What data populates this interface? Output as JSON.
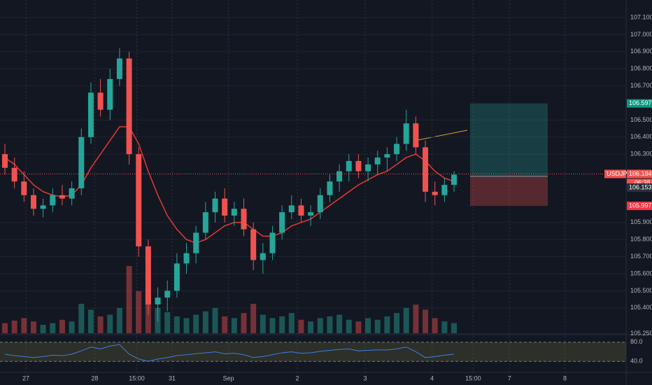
{
  "chart_data": {
    "type": "candlestick",
    "symbol": "USDJPY",
    "open": [
      106.3,
      106.22,
      106.14,
      106.06,
      105.98,
      106.0,
      106.06,
      106.04,
      106.1,
      106.4,
      106.66,
      106.56,
      106.74,
      106.86,
      106.3,
      105.76,
      105.42,
      105.46,
      105.5,
      105.66,
      105.72,
      105.84,
      105.96,
      106.04,
      105.94,
      105.98,
      105.86,
      105.68,
      105.72,
      105.84,
      105.96,
      106.0,
      105.94,
      105.96,
      106.06,
      106.14,
      106.2,
      106.26,
      106.2,
      106.24,
      106.28,
      106.3,
      106.36,
      106.48,
      106.34,
      106.08,
      106.06,
      106.12
    ],
    "high": [
      106.36,
      106.28,
      106.2,
      106.1,
      106.04,
      106.1,
      106.12,
      106.14,
      106.45,
      106.72,
      106.74,
      106.8,
      106.92,
      106.9,
      106.34,
      105.8,
      105.52,
      105.56,
      105.72,
      105.78,
      105.88,
      106.02,
      106.08,
      106.1,
      106.02,
      106.04,
      105.9,
      105.78,
      105.88,
      106.0,
      106.06,
      106.04,
      106.0,
      106.1,
      106.18,
      106.24,
      106.3,
      106.3,
      106.28,
      106.32,
      106.34,
      106.4,
      106.56,
      106.52,
      106.38,
      106.14,
      106.16,
      106.2
    ],
    "low": [
      106.18,
      106.1,
      106.02,
      105.94,
      105.93,
      105.96,
      106.0,
      106.0,
      106.06,
      106.36,
      106.52,
      106.5,
      106.7,
      106.24,
      105.7,
      105.36,
      105.32,
      105.38,
      105.46,
      105.6,
      105.66,
      105.8,
      105.9,
      105.9,
      105.88,
      105.82,
      105.62,
      105.6,
      105.68,
      105.8,
      105.92,
      105.9,
      105.88,
      105.92,
      106.02,
      106.08,
      106.14,
      106.16,
      106.14,
      106.18,
      106.2,
      106.26,
      106.32,
      106.3,
      106.02,
      106.0,
      106.02,
      106.08
    ],
    "close": [
      106.22,
      106.14,
      106.06,
      105.98,
      106.0,
      106.06,
      106.04,
      106.1,
      106.4,
      106.66,
      106.56,
      106.74,
      106.86,
      106.3,
      105.76,
      105.42,
      105.46,
      105.5,
      105.66,
      105.72,
      105.84,
      105.96,
      106.04,
      105.94,
      105.98,
      105.86,
      105.68,
      105.72,
      105.84,
      105.96,
      106.0,
      105.94,
      105.96,
      106.06,
      106.14,
      106.2,
      106.26,
      106.2,
      106.24,
      106.28,
      106.3,
      106.36,
      106.48,
      106.34,
      106.08,
      106.06,
      106.12,
      106.18
    ],
    "ma": [
      106.28,
      106.24,
      106.18,
      106.12,
      106.08,
      106.06,
      106.05,
      106.06,
      106.12,
      106.22,
      106.3,
      106.38,
      106.46,
      106.46,
      106.36,
      106.2,
      106.06,
      105.94,
      105.86,
      105.8,
      105.78,
      105.8,
      105.84,
      105.88,
      105.9,
      105.9,
      105.86,
      105.82,
      105.82,
      105.84,
      105.88,
      105.9,
      105.92,
      105.96,
      106.0,
      106.04,
      106.08,
      106.12,
      106.15,
      106.18,
      106.2,
      106.24,
      106.28,
      106.3,
      106.26,
      106.2,
      106.16,
      106.14
    ],
    "volume": [
      12,
      15,
      18,
      14,
      10,
      12,
      16,
      14,
      35,
      28,
      20,
      22,
      30,
      80,
      50,
      45,
      30,
      25,
      20,
      18,
      22,
      26,
      30,
      20,
      18,
      24,
      35,
      22,
      18,
      20,
      24,
      16,
      14,
      18,
      20,
      22,
      16,
      14,
      18,
      16,
      20,
      24,
      30,
      34,
      28,
      18,
      14,
      12
    ],
    "vlim": [
      0,
      100
    ],
    "rsi": [
      55,
      52,
      50,
      48,
      50,
      53,
      52,
      55,
      62,
      70,
      66,
      72,
      75,
      55,
      45,
      40,
      45,
      48,
      52,
      54,
      56,
      58,
      60,
      56,
      57,
      54,
      48,
      50,
      54,
      58,
      60,
      57,
      58,
      61,
      63,
      65,
      66,
      62,
      63,
      64,
      64,
      66,
      70,
      60,
      48,
      50,
      53,
      55
    ],
    "rsi_ylim": [
      20,
      90
    ],
    "rsi_yticks": [
      {
        "value": 80,
        "label": "80.0"
      },
      {
        "value": 40,
        "label": "40.0"
      }
    ],
    "ylim": [
      105.23,
      107.2
    ],
    "yticks": [
      {
        "value": 107.1,
        "label": "107.100"
      },
      {
        "value": 107.0,
        "label": "107.000"
      },
      {
        "value": 106.9,
        "label": "106.900"
      },
      {
        "value": 106.8,
        "label": "106.800"
      },
      {
        "value": 106.7,
        "label": "106.700"
      },
      {
        "value": 106.5,
        "label": "106.500"
      },
      {
        "value": 106.4,
        "label": "106.400"
      },
      {
        "value": 106.3,
        "label": "106.300"
      },
      {
        "value": 105.9,
        "label": "105.900"
      },
      {
        "value": 105.8,
        "label": "105.800"
      },
      {
        "value": 105.7,
        "label": "105.700"
      },
      {
        "value": 105.6,
        "label": "105.600"
      },
      {
        "value": 105.5,
        "label": "105.500"
      },
      {
        "value": 105.4,
        "label": "105.400"
      },
      {
        "value": 105.25,
        "label": "105.250"
      }
    ],
    "xticks": [
      {
        "value": 2.2,
        "label": "27"
      },
      {
        "value": 9.4,
        "label": "28"
      },
      {
        "value": 13.8,
        "label": "15:00"
      },
      {
        "value": 17.5,
        "label": "31"
      },
      {
        "value": 23.4,
        "label": "Sep"
      },
      {
        "value": 30.6,
        "label": "2"
      },
      {
        "value": 37.7,
        "label": "3"
      },
      {
        "value": 44.7,
        "label": "4"
      },
      {
        "value": 49,
        "label": "15:00"
      },
      {
        "value": 52.8,
        "label": "7"
      },
      {
        "value": 58.6,
        "label": "8"
      }
    ],
    "last_price": {
      "value": 106.184,
      "label": "106.184"
    },
    "countdown": "06:38",
    "bid": {
      "value": 106.153,
      "label": "106.153"
    },
    "position": {
      "target": {
        "value": 106.597,
        "label": "106.597"
      },
      "entry": 106.17,
      "stop": {
        "value": 105.997,
        "label": "105.997"
      }
    },
    "colors": {
      "up": "#26a69a",
      "down": "#ef5350",
      "ma": "#e53935",
      "rsi": "#3f7ee8"
    },
    "grid": true
  }
}
